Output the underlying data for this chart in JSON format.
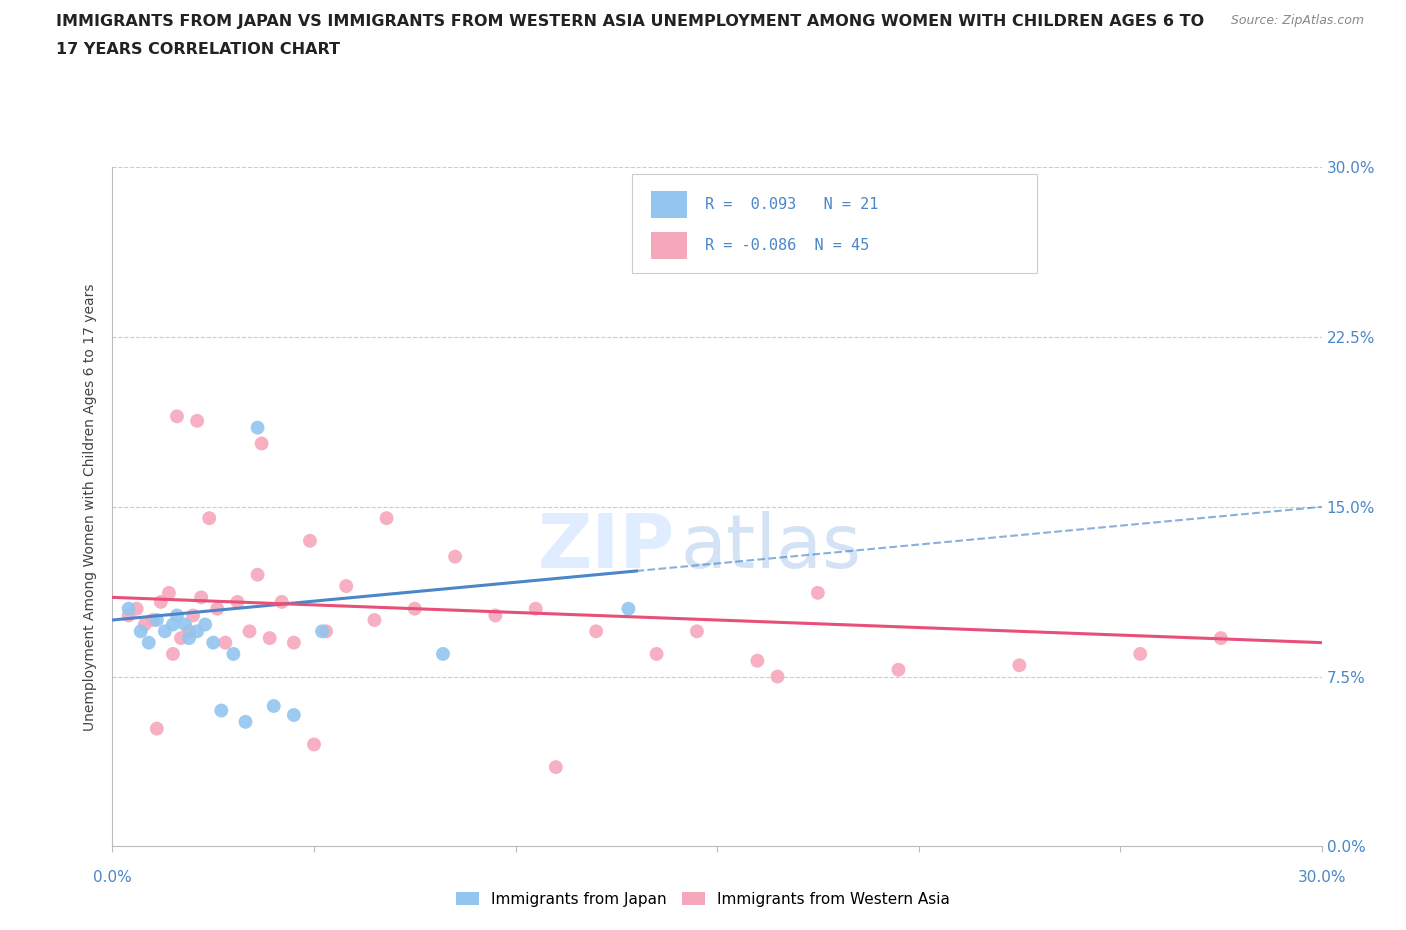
{
  "title_line1": "IMMIGRANTS FROM JAPAN VS IMMIGRANTS FROM WESTERN ASIA UNEMPLOYMENT AMONG WOMEN WITH CHILDREN AGES 6 TO",
  "title_line2": "17 YEARS CORRELATION CHART",
  "source_text": "Source: ZipAtlas.com",
  "ylabel": "Unemployment Among Women with Children Ages 6 to 17 years",
  "ytick_values": [
    0.0,
    7.5,
    15.0,
    22.5,
    30.0
  ],
  "xlim": [
    0.0,
    30.0
  ],
  "ylim": [
    0.0,
    30.0
  ],
  "legend_label1": "Immigrants from Japan",
  "legend_label2": "Immigrants from Western Asia",
  "r1": 0.093,
  "n1": 21,
  "r2": -0.086,
  "n2": 45,
  "color_japan": "#92C5F0",
  "color_western_asia": "#F5A8BC",
  "color_japan_line": "#4A86C8",
  "color_western_asia_line": "#E8507A",
  "japan_x": [
    0.4,
    0.7,
    0.9,
    1.1,
    1.3,
    1.5,
    1.6,
    1.8,
    1.9,
    2.1,
    2.3,
    2.5,
    2.7,
    3.0,
    3.3,
    3.6,
    4.0,
    4.5,
    5.2,
    8.2,
    12.8
  ],
  "japan_y": [
    10.5,
    9.5,
    9.0,
    10.0,
    9.5,
    9.8,
    10.2,
    9.8,
    9.2,
    9.5,
    9.8,
    9.0,
    6.0,
    8.5,
    5.5,
    18.5,
    6.2,
    5.8,
    9.5,
    8.5,
    10.5
  ],
  "western_asia_x": [
    0.4,
    0.6,
    0.8,
    1.0,
    1.2,
    1.4,
    1.5,
    1.7,
    1.9,
    2.0,
    2.2,
    2.4,
    2.6,
    2.8,
    3.1,
    3.4,
    3.6,
    3.9,
    4.2,
    4.5,
    4.9,
    5.3,
    5.8,
    6.5,
    7.5,
    8.5,
    9.5,
    10.5,
    12.0,
    13.5,
    14.5,
    16.0,
    17.5,
    19.5,
    22.5,
    25.5,
    27.5,
    1.1,
    1.6,
    2.1,
    3.7,
    5.0,
    6.8,
    11.0,
    16.5
  ],
  "western_asia_y": [
    10.2,
    10.5,
    9.8,
    10.0,
    10.8,
    11.2,
    8.5,
    9.2,
    9.5,
    10.2,
    11.0,
    14.5,
    10.5,
    9.0,
    10.8,
    9.5,
    12.0,
    9.2,
    10.8,
    9.0,
    13.5,
    9.5,
    11.5,
    10.0,
    10.5,
    12.8,
    10.2,
    10.5,
    9.5,
    8.5,
    9.5,
    8.2,
    11.2,
    7.8,
    8.0,
    8.5,
    9.2,
    5.2,
    19.0,
    18.8,
    17.8,
    4.5,
    14.5,
    3.5,
    7.5
  ]
}
